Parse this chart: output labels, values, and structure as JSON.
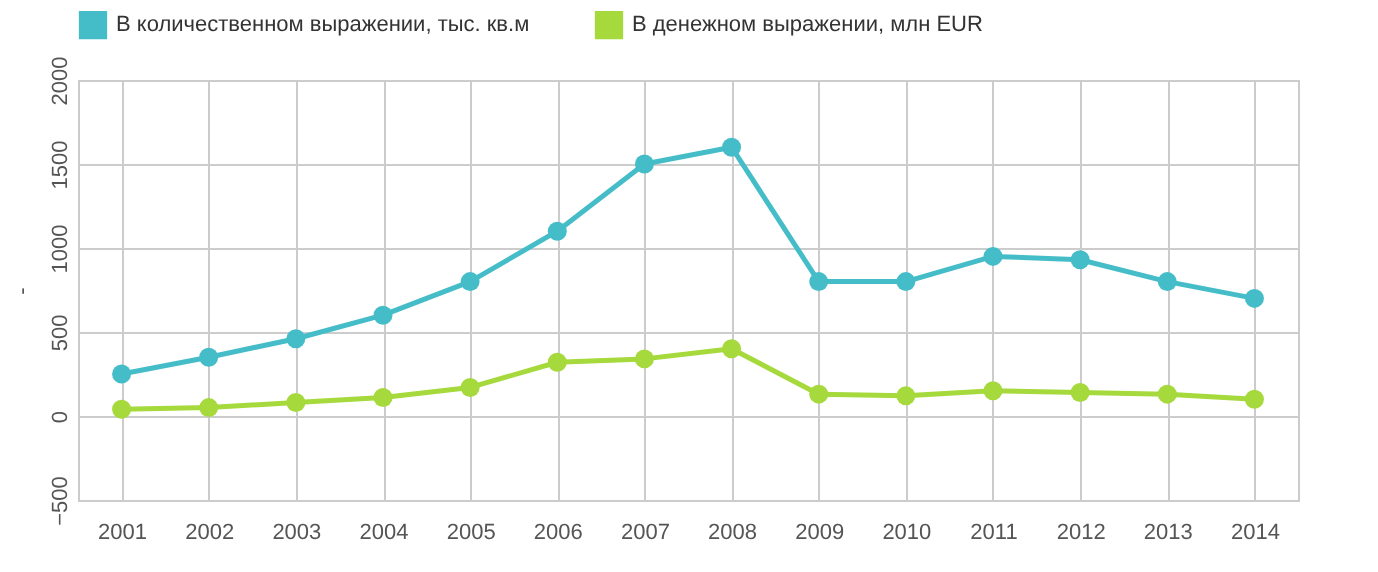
{
  "chart_data": {
    "type": "line",
    "ylabel": "-",
    "categories": [
      "2001",
      "2002",
      "2003",
      "2004",
      "2005",
      "2006",
      "2007",
      "2008",
      "2009",
      "2010",
      "2011",
      "2012",
      "2013",
      "2014"
    ],
    "series": [
      {
        "name": "В количественном выражении, тыс. кв.м",
        "color": "#45bdc8",
        "values": [
          250,
          350,
          460,
          600,
          800,
          1100,
          1500,
          1600,
          800,
          800,
          950,
          930,
          800,
          700
        ]
      },
      {
        "name": "В денежном выражении, млн EUR",
        "color": "#a5d93c",
        "values": [
          40,
          50,
          80,
          110,
          170,
          320,
          340,
          400,
          130,
          120,
          150,
          140,
          130,
          100
        ]
      }
    ],
    "ylim": [
      -500,
      2000
    ],
    "yticks": [
      -500,
      0,
      500,
      1000,
      1500,
      2000
    ],
    "grid": true,
    "legend": "top",
    "marker": "circle",
    "line_style": "solid"
  }
}
